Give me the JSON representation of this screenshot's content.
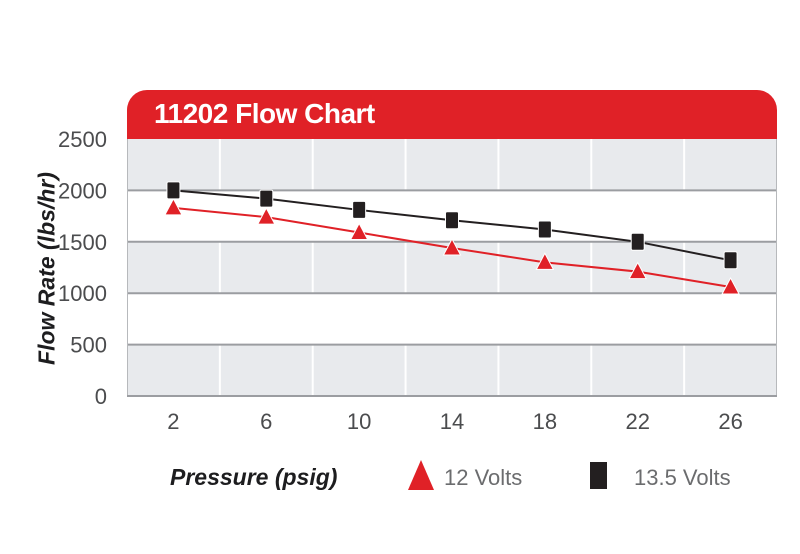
{
  "header": {
    "title": "11202 Flow Chart",
    "bg_color": "#e02127",
    "text_color": "#ffffff"
  },
  "chart_data": {
    "type": "line",
    "title": "11202 Flow Chart",
    "xlabel": "Pressure (psig)",
    "ylabel": "Flow Rate (lbs/hr)",
    "categories": [
      2,
      6,
      10,
      14,
      18,
      22,
      26
    ],
    "series": [
      {
        "name": "12 Volts",
        "marker": "triangle",
        "color": "#e02127",
        "values": [
          1830,
          1740,
          1590,
          1440,
          1300,
          1210,
          1060
        ]
      },
      {
        "name": "13.5 Volts",
        "marker": "square",
        "color": "#231f20",
        "values": [
          2000,
          1920,
          1810,
          1710,
          1620,
          1500,
          1320
        ]
      }
    ],
    "ylim": [
      0,
      2500
    ],
    "yticks": [
      0,
      500,
      1000,
      1500,
      2000,
      2500
    ],
    "grid": "horizontal gridlines at 500 intervals, alternating gray/white bands, white vertical category-boundary lines",
    "legend_position": "bottom"
  },
  "colors": {
    "band_gray": "#e8eaed",
    "band_white": "#ffffff",
    "h_gridline": "#9b9da1",
    "v_gridline": "#ffffff",
    "plot_border": "#b7b9bc",
    "axis_line": "#9b9da1",
    "tick_text": "#4b4c4e",
    "legend_text": "#6b6c6e"
  }
}
